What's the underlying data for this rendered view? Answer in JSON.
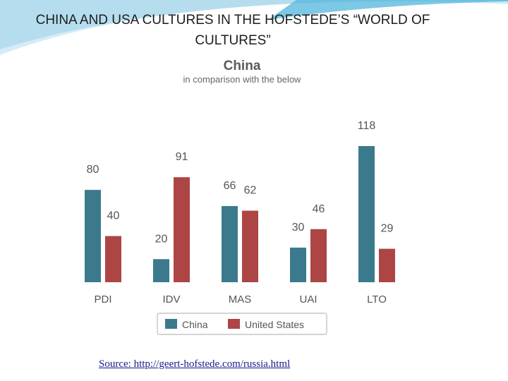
{
  "slide": {
    "title": "CHINA AND USA CULTURES IN THE HOFSTEDE’S “WORLD OF CULTURES”",
    "source": "Source: http://geert-hofstede.com/russia.html"
  },
  "colors": {
    "China": "#3b7a8d",
    "United States": "#ad4545",
    "axis_text": "#555555"
  },
  "chart_data": {
    "type": "bar",
    "title": "China",
    "subtitle": "in comparison with the below",
    "categories": [
      "PDI",
      "IDV",
      "MAS",
      "UAI",
      "LTO"
    ],
    "series": [
      {
        "name": "China",
        "values": [
          80,
          20,
          66,
          30,
          118
        ]
      },
      {
        "name": "United States",
        "values": [
          40,
          91,
          62,
          46,
          29
        ]
      }
    ],
    "ylim": [
      0,
      118
    ],
    "grid": false,
    "legend": "bottom"
  }
}
